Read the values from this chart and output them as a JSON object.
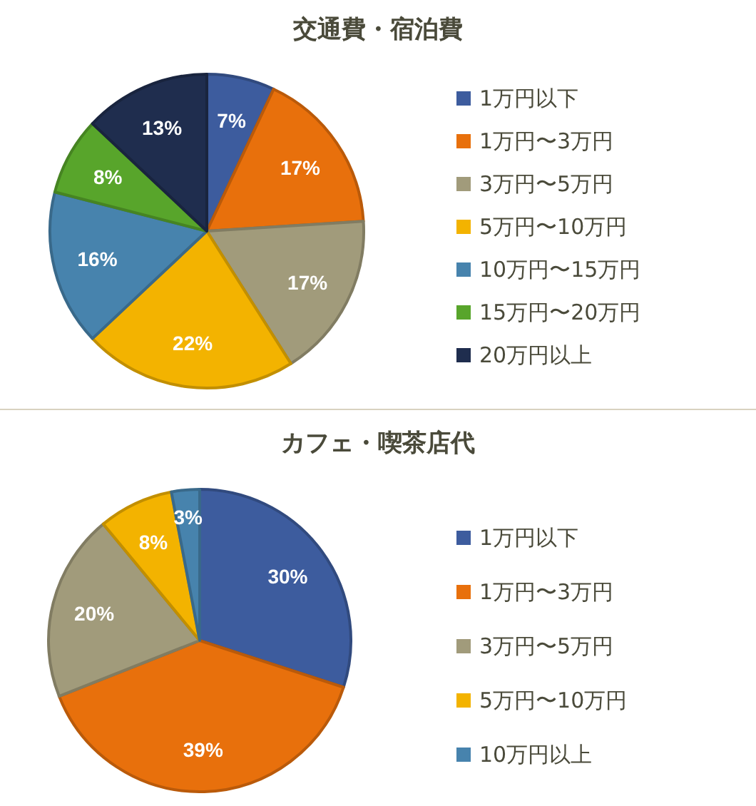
{
  "chart_data": [
    {
      "type": "pie",
      "title": "交通費・宿泊費",
      "categories": [
        "1万円以下",
        "1万円〜3万円",
        "3万円〜5万円",
        "5万円〜10万円",
        "10万円〜15万円",
        "15万円〜20万円",
        "20万円以上"
      ],
      "values": [
        7,
        17,
        17,
        22,
        16,
        8,
        13
      ],
      "value_labels": [
        "7%",
        "17%",
        "17%",
        "22%",
        "16%",
        "8%",
        "13%"
      ],
      "colors": [
        "#3d5c9e",
        "#e8700c",
        "#a19b7b",
        "#f3b300",
        "#4783ad",
        "#58a52b",
        "#1f2d4e"
      ],
      "legend": "right"
    },
    {
      "type": "pie",
      "title": "カフェ・喫茶店代",
      "categories": [
        "1万円以下",
        "1万円〜3万円",
        "3万円〜5万円",
        "5万円〜10万円",
        "10万円以上"
      ],
      "values": [
        30,
        39,
        20,
        8,
        3
      ],
      "value_labels": [
        "30%",
        "39%",
        "20%",
        "8%",
        "3%"
      ],
      "colors": [
        "#3d5c9e",
        "#e8700c",
        "#a19b7b",
        "#f3b300",
        "#4783ad"
      ],
      "legend": "right"
    }
  ]
}
